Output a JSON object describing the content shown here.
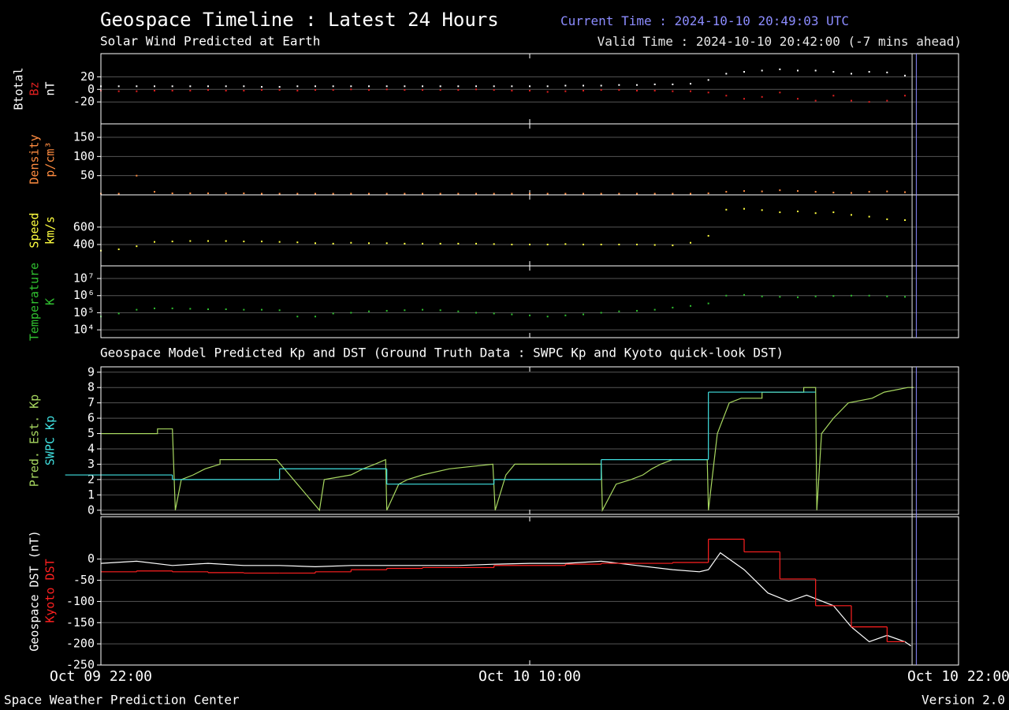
{
  "header": {
    "current_label": "Current Time :",
    "current_time": "2024-10-10 20:49:03 UTC",
    "current_color": "#8c8cff",
    "valid_label": "Valid Time :",
    "valid_time": "2024-10-10 20:42:00",
    "valid_note": "(-7 mins ahead)",
    "valid_color": "#e6e6e6"
  },
  "footer": {
    "left": "Space Weather Prediction Center",
    "right": "Version 2.0"
  },
  "time_axis": {
    "xlim": [
      "Oct 09 22:00",
      "Oct 10 22:00"
    ],
    "xticks": [
      "Oct 09 22:00",
      "Oct 10 10:00",
      "Oct 10 22:00"
    ]
  },
  "chart_data": [
    {
      "type": "scatter",
      "title": "Geospace Timeline : Latest 24 Hours",
      "subtitle": "Solar Wind Predicted at Earth",
      "grid": true,
      "x": [
        "Oct 09 22:00",
        "Oct 09 22:30",
        "Oct 09 23:00",
        "Oct 09 23:30",
        "Oct 10 00:00",
        "Oct 10 00:30",
        "Oct 10 01:00",
        "Oct 10 01:30",
        "Oct 10 02:00",
        "Oct 10 02:30",
        "Oct 10 03:00",
        "Oct 10 03:30",
        "Oct 10 04:00",
        "Oct 10 04:30",
        "Oct 10 05:00",
        "Oct 10 05:30",
        "Oct 10 06:00",
        "Oct 10 06:30",
        "Oct 10 07:00",
        "Oct 10 07:30",
        "Oct 10 08:00",
        "Oct 10 08:30",
        "Oct 10 09:00",
        "Oct 10 09:30",
        "Oct 10 10:00",
        "Oct 10 10:30",
        "Oct 10 11:00",
        "Oct 10 11:30",
        "Oct 10 12:00",
        "Oct 10 12:30",
        "Oct 10 13:00",
        "Oct 10 13:30",
        "Oct 10 14:00",
        "Oct 10 14:30",
        "Oct 10 15:00",
        "Oct 10 15:30",
        "Oct 10 16:00",
        "Oct 10 16:30",
        "Oct 10 17:00",
        "Oct 10 17:30",
        "Oct 10 18:00",
        "Oct 10 18:30",
        "Oct 10 19:00",
        "Oct 10 19:30",
        "Oct 10 20:00",
        "Oct 10 20:30"
      ],
      "panels": [
        {
          "ylabel": "nT",
          "ylabel_color": "#ffffff",
          "ylim": [
            -55,
            57
          ],
          "yticks": [
            -20,
            0,
            20
          ],
          "series": [
            {
              "name": "Btotal",
              "color": "#ffffff",
              "values": [
                5,
                5,
                5,
                5,
                5,
                5,
                5,
                5,
                5,
                4,
                4,
                5,
                5,
                5,
                5,
                5,
                5,
                5,
                5,
                5,
                5,
                5,
                5,
                5,
                5,
                5,
                6,
                6,
                6,
                7,
                7,
                8,
                8,
                9,
                15,
                25,
                28,
                30,
                32,
                30,
                30,
                28,
                25,
                28,
                27,
                22
              ]
            },
            {
              "name": "Bz",
              "color": "#e02020",
              "values": [
                -2,
                -3,
                -3,
                -2,
                -2,
                -2,
                -1,
                -2,
                -2,
                -1,
                -1,
                -2,
                -1,
                -1,
                0,
                -1,
                0,
                -1,
                -1,
                -1,
                -1,
                0,
                -1,
                -2,
                -2,
                -4,
                -3,
                -2,
                -1,
                -1,
                -2,
                -2,
                -3,
                -3,
                -5,
                -10,
                -15,
                -12,
                -5,
                -15,
                -18,
                -10,
                -18,
                -20,
                -18,
                -10
              ]
            }
          ]
        },
        {
          "ylabel": "p/cm³",
          "ylabel_color": "#ff8c40",
          "ylim": [
            0,
            185
          ],
          "yticks": [
            50,
            100,
            150
          ],
          "series": [
            {
              "name": "Density",
              "color": "#ff8c40",
              "values": [
                3,
                3,
                50,
                8,
                4,
                4,
                4,
                4,
                4,
                3,
                3,
                3,
                3,
                3,
                3,
                3,
                3,
                3,
                3,
                3,
                3,
                3,
                3,
                3,
                3,
                3,
                3,
                3,
                3,
                3,
                3,
                3,
                3,
                3,
                4,
                8,
                10,
                9,
                12,
                10,
                8,
                6,
                5,
                8,
                9,
                7
              ]
            }
          ]
        },
        {
          "ylabel": "km/s",
          "ylabel_color": "#ffff40",
          "ylim": [
            155,
            970
          ],
          "yticks": [
            400,
            600
          ],
          "series": [
            {
              "name": "Speed",
              "color": "#ffff40",
              "values": [
                330,
                345,
                380,
                430,
                435,
                440,
                440,
                440,
                435,
                435,
                430,
                425,
                415,
                410,
                420,
                415,
                415,
                410,
                410,
                410,
                410,
                410,
                405,
                400,
                400,
                400,
                405,
                400,
                400,
                400,
                400,
                395,
                390,
                420,
                500,
                800,
                810,
                795,
                770,
                780,
                760,
                770,
                740,
                720,
                690,
                680
              ]
            }
          ]
        },
        {
          "ylabel": "K",
          "ylabel_color": "#30c030",
          "log": true,
          "ylim": [
            3500,
            55000000
          ],
          "yticks": [
            {
              "value": 10000,
              "label": "10⁴"
            },
            {
              "value": 100000,
              "label": "10⁵"
            },
            {
              "value": 1000000,
              "label": "10⁶"
            },
            {
              "value": 10000000,
              "label": "10⁷"
            }
          ],
          "series": [
            {
              "name": "Temperature",
              "color": "#30c030",
              "values": [
                60000,
                90000,
                150000,
                180000,
                180000,
                170000,
                160000,
                160000,
                150000,
                150000,
                140000,
                60000,
                60000,
                90000,
                100000,
                120000,
                130000,
                140000,
                150000,
                140000,
                120000,
                100000,
                90000,
                80000,
                70000,
                60000,
                70000,
                80000,
                100000,
                120000,
                130000,
                150000,
                200000,
                250000,
                350000,
                1000000,
                1100000,
                900000,
                850000,
                800000,
                900000,
                950000,
                1000000,
                1000000,
                900000,
                850000
              ]
            }
          ]
        }
      ]
    },
    {
      "type": "line",
      "title": "Geospace Model Predicted Kp and DST (Ground Truth Data : SWPC Kp and Kyoto quick-look DST)",
      "grid": true,
      "panels": [
        {
          "ylim": [
            -0.27,
            9.35
          ],
          "yticks": [
            0,
            1,
            2,
            3,
            4,
            5,
            6,
            7,
            8,
            9
          ],
          "series": [
            {
              "name": "Pred. Est. Kp",
              "color": "#a8d860",
              "x": [
                "Oct 09 22:00",
                "Oct 09 23:35",
                "Oct 09 23:35",
                "Oct 10 00:00",
                "Oct 10 00:05",
                "Oct 10 00:15",
                "Oct 10 00:35",
                "Oct 10 00:55",
                "Oct 10 01:20",
                "Oct 10 01:20",
                "Oct 10 02:55",
                "Oct 10 04:07",
                "Oct 10 04:15",
                "Oct 10 05:00",
                "Oct 10 05:20",
                "Oct 10 05:40",
                "Oct 10 05:58",
                "Oct 10 06:00",
                "Oct 10 06:20",
                "Oct 10 06:35",
                "Oct 10 07:00",
                "Oct 10 07:45",
                "Oct 10 08:58",
                "Oct 10 09:02",
                "Oct 10 09:20",
                "Oct 10 09:35",
                "Oct 10 12:00",
                "Oct 10 12:02",
                "Oct 10 12:25",
                "Oct 10 12:50",
                "Oct 10 13:10",
                "Oct 10 13:25",
                "Oct 10 13:40",
                "Oct 10 14:00",
                "Oct 10 14:58",
                "Oct 10 15:00",
                "Oct 10 15:15",
                "Oct 10 15:35",
                "Oct 10 15:55",
                "Oct 10 16:30",
                "Oct 10 16:30",
                "Oct 10 17:40",
                "Oct 10 17:40",
                "Oct 10 18:00",
                "Oct 10 18:02",
                "Oct 10 18:10",
                "Oct 10 18:30",
                "Oct 10 18:55",
                "Oct 10 19:35",
                "Oct 10 19:55",
                "Oct 10 20:35",
                "Oct 10 20:45"
              ],
              "values": [
                5.0,
                5.0,
                5.3,
                5.3,
                0,
                2.0,
                2.3,
                2.7,
                3.0,
                3.3,
                3.3,
                0,
                2.0,
                2.3,
                2.7,
                3.0,
                3.3,
                0,
                1.7,
                2.0,
                2.3,
                2.7,
                3.0,
                0,
                2.3,
                3.0,
                3.0,
                0,
                1.7,
                2.0,
                2.3,
                2.7,
                3.0,
                3.3,
                3.3,
                0,
                5.0,
                7.0,
                7.3,
                7.3,
                7.7,
                7.7,
                8.0,
                8.0,
                0,
                5.0,
                6.0,
                7.0,
                7.3,
                7.7,
                8.0,
                8.0
              ]
            },
            {
              "name": "SWPC Kp",
              "color": "#40e0e0",
              "step": "post",
              "x": [
                "Oct 09 21:00",
                "Oct 10 00:00",
                "Oct 10 03:00",
                "Oct 10 06:00",
                "Oct 10 09:00",
                "Oct 10 12:00",
                "Oct 10 15:00",
                "Oct 10 18:00"
              ],
              "values": [
                2.3,
                2.0,
                2.7,
                1.7,
                2.0,
                3.3,
                7.7,
                7.7
              ]
            }
          ]
        },
        {
          "ylim": [
            -250,
            100
          ],
          "yticks": [
            0,
            -50,
            -100,
            -150,
            -200,
            -250
          ],
          "series": [
            {
              "name": "Geospace DST (nT)",
              "color": "#ffffff",
              "x": [
                "Oct 09 22:00",
                "Oct 09 23:00",
                "Oct 10 00:00",
                "Oct 10 01:00",
                "Oct 10 02:00",
                "Oct 10 03:00",
                "Oct 10 04:00",
                "Oct 10 05:00",
                "Oct 10 06:00",
                "Oct 10 07:00",
                "Oct 10 08:00",
                "Oct 10 09:00",
                "Oct 10 10:00",
                "Oct 10 11:00",
                "Oct 10 12:00",
                "Oct 10 13:00",
                "Oct 10 14:00",
                "Oct 10 14:45",
                "Oct 10 15:00",
                "Oct 10 15:20",
                "Oct 10 16:00",
                "Oct 10 16:40",
                "Oct 10 17:15",
                "Oct 10 17:45",
                "Oct 10 18:30",
                "Oct 10 19:00",
                "Oct 10 19:30",
                "Oct 10 20:00",
                "Oct 10 20:30",
                "Oct 10 20:40"
              ],
              "values": [
                -10,
                -5,
                -15,
                -10,
                -15,
                -15,
                -18,
                -15,
                -15,
                -15,
                -15,
                -12,
                -10,
                -10,
                -5,
                -15,
                -25,
                -30,
                -25,
                15,
                -25,
                -80,
                -100,
                -85,
                -110,
                -160,
                -195,
                -180,
                -195,
                -205
              ]
            },
            {
              "name": "Kyoto DST",
              "color": "#ff2020",
              "step": "post",
              "x": [
                "Oct 09 22:00",
                "Oct 09 23:00",
                "Oct 10 00:00",
                "Oct 10 01:00",
                "Oct 10 02:00",
                "Oct 10 03:00",
                "Oct 10 04:00",
                "Oct 10 05:00",
                "Oct 10 06:00",
                "Oct 10 07:00",
                "Oct 10 08:00",
                "Oct 10 09:00",
                "Oct 10 10:00",
                "Oct 10 11:00",
                "Oct 10 12:00",
                "Oct 10 13:00",
                "Oct 10 14:00",
                "Oct 10 15:00",
                "Oct 10 16:00",
                "Oct 10 17:00",
                "Oct 10 18:00",
                "Oct 10 19:00",
                "Oct 10 20:00",
                "Oct 10 20:30"
              ],
              "values": [
                -30,
                -28,
                -30,
                -32,
                -33,
                -33,
                -30,
                -25,
                -22,
                -20,
                -20,
                -15,
                -15,
                -12,
                -10,
                -10,
                -8,
                47,
                17,
                -47,
                -110,
                -160,
                -195,
                -195
              ]
            }
          ]
        }
      ]
    }
  ]
}
